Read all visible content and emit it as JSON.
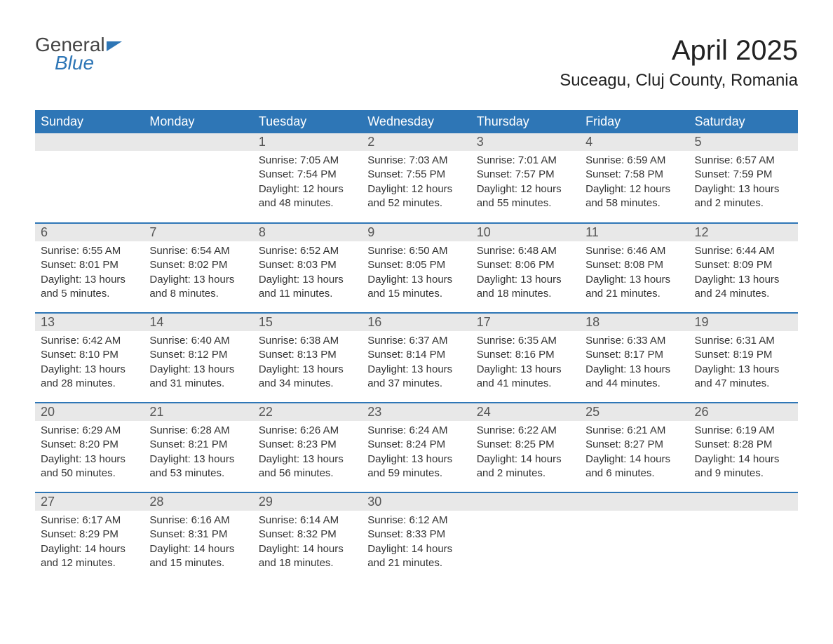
{
  "brand": {
    "word1": "General",
    "word2": "Blue"
  },
  "title": {
    "month": "April 2025",
    "location": "Suceagu, Cluj County, Romania"
  },
  "colors": {
    "header_bg": "#2e76b6",
    "header_text": "#ffffff",
    "day_num_bg": "#e8e8e8",
    "row_border": "#2e76b6",
    "text": "#333333",
    "brand_blue": "#2e76b6",
    "brand_gray": "#444444",
    "background": "#ffffff"
  },
  "layout": {
    "columns": 7,
    "rows": 5,
    "week_start": "Sunday"
  },
  "weekdays": [
    "Sunday",
    "Monday",
    "Tuesday",
    "Wednesday",
    "Thursday",
    "Friday",
    "Saturday"
  ],
  "weeks": [
    [
      null,
      null,
      {
        "day": "1",
        "sunrise": "Sunrise: 7:05 AM",
        "sunset": "Sunset: 7:54 PM",
        "daylight1": "Daylight: 12 hours",
        "daylight2": "and 48 minutes."
      },
      {
        "day": "2",
        "sunrise": "Sunrise: 7:03 AM",
        "sunset": "Sunset: 7:55 PM",
        "daylight1": "Daylight: 12 hours",
        "daylight2": "and 52 minutes."
      },
      {
        "day": "3",
        "sunrise": "Sunrise: 7:01 AM",
        "sunset": "Sunset: 7:57 PM",
        "daylight1": "Daylight: 12 hours",
        "daylight2": "and 55 minutes."
      },
      {
        "day": "4",
        "sunrise": "Sunrise: 6:59 AM",
        "sunset": "Sunset: 7:58 PM",
        "daylight1": "Daylight: 12 hours",
        "daylight2": "and 58 minutes."
      },
      {
        "day": "5",
        "sunrise": "Sunrise: 6:57 AM",
        "sunset": "Sunset: 7:59 PM",
        "daylight1": "Daylight: 13 hours",
        "daylight2": "and 2 minutes."
      }
    ],
    [
      {
        "day": "6",
        "sunrise": "Sunrise: 6:55 AM",
        "sunset": "Sunset: 8:01 PM",
        "daylight1": "Daylight: 13 hours",
        "daylight2": "and 5 minutes."
      },
      {
        "day": "7",
        "sunrise": "Sunrise: 6:54 AM",
        "sunset": "Sunset: 8:02 PM",
        "daylight1": "Daylight: 13 hours",
        "daylight2": "and 8 minutes."
      },
      {
        "day": "8",
        "sunrise": "Sunrise: 6:52 AM",
        "sunset": "Sunset: 8:03 PM",
        "daylight1": "Daylight: 13 hours",
        "daylight2": "and 11 minutes."
      },
      {
        "day": "9",
        "sunrise": "Sunrise: 6:50 AM",
        "sunset": "Sunset: 8:05 PM",
        "daylight1": "Daylight: 13 hours",
        "daylight2": "and 15 minutes."
      },
      {
        "day": "10",
        "sunrise": "Sunrise: 6:48 AM",
        "sunset": "Sunset: 8:06 PM",
        "daylight1": "Daylight: 13 hours",
        "daylight2": "and 18 minutes."
      },
      {
        "day": "11",
        "sunrise": "Sunrise: 6:46 AM",
        "sunset": "Sunset: 8:08 PM",
        "daylight1": "Daylight: 13 hours",
        "daylight2": "and 21 minutes."
      },
      {
        "day": "12",
        "sunrise": "Sunrise: 6:44 AM",
        "sunset": "Sunset: 8:09 PM",
        "daylight1": "Daylight: 13 hours",
        "daylight2": "and 24 minutes."
      }
    ],
    [
      {
        "day": "13",
        "sunrise": "Sunrise: 6:42 AM",
        "sunset": "Sunset: 8:10 PM",
        "daylight1": "Daylight: 13 hours",
        "daylight2": "and 28 minutes."
      },
      {
        "day": "14",
        "sunrise": "Sunrise: 6:40 AM",
        "sunset": "Sunset: 8:12 PM",
        "daylight1": "Daylight: 13 hours",
        "daylight2": "and 31 minutes."
      },
      {
        "day": "15",
        "sunrise": "Sunrise: 6:38 AM",
        "sunset": "Sunset: 8:13 PM",
        "daylight1": "Daylight: 13 hours",
        "daylight2": "and 34 minutes."
      },
      {
        "day": "16",
        "sunrise": "Sunrise: 6:37 AM",
        "sunset": "Sunset: 8:14 PM",
        "daylight1": "Daylight: 13 hours",
        "daylight2": "and 37 minutes."
      },
      {
        "day": "17",
        "sunrise": "Sunrise: 6:35 AM",
        "sunset": "Sunset: 8:16 PM",
        "daylight1": "Daylight: 13 hours",
        "daylight2": "and 41 minutes."
      },
      {
        "day": "18",
        "sunrise": "Sunrise: 6:33 AM",
        "sunset": "Sunset: 8:17 PM",
        "daylight1": "Daylight: 13 hours",
        "daylight2": "and 44 minutes."
      },
      {
        "day": "19",
        "sunrise": "Sunrise: 6:31 AM",
        "sunset": "Sunset: 8:19 PM",
        "daylight1": "Daylight: 13 hours",
        "daylight2": "and 47 minutes."
      }
    ],
    [
      {
        "day": "20",
        "sunrise": "Sunrise: 6:29 AM",
        "sunset": "Sunset: 8:20 PM",
        "daylight1": "Daylight: 13 hours",
        "daylight2": "and 50 minutes."
      },
      {
        "day": "21",
        "sunrise": "Sunrise: 6:28 AM",
        "sunset": "Sunset: 8:21 PM",
        "daylight1": "Daylight: 13 hours",
        "daylight2": "and 53 minutes."
      },
      {
        "day": "22",
        "sunrise": "Sunrise: 6:26 AM",
        "sunset": "Sunset: 8:23 PM",
        "daylight1": "Daylight: 13 hours",
        "daylight2": "and 56 minutes."
      },
      {
        "day": "23",
        "sunrise": "Sunrise: 6:24 AM",
        "sunset": "Sunset: 8:24 PM",
        "daylight1": "Daylight: 13 hours",
        "daylight2": "and 59 minutes."
      },
      {
        "day": "24",
        "sunrise": "Sunrise: 6:22 AM",
        "sunset": "Sunset: 8:25 PM",
        "daylight1": "Daylight: 14 hours",
        "daylight2": "and 2 minutes."
      },
      {
        "day": "25",
        "sunrise": "Sunrise: 6:21 AM",
        "sunset": "Sunset: 8:27 PM",
        "daylight1": "Daylight: 14 hours",
        "daylight2": "and 6 minutes."
      },
      {
        "day": "26",
        "sunrise": "Sunrise: 6:19 AM",
        "sunset": "Sunset: 8:28 PM",
        "daylight1": "Daylight: 14 hours",
        "daylight2": "and 9 minutes."
      }
    ],
    [
      {
        "day": "27",
        "sunrise": "Sunrise: 6:17 AM",
        "sunset": "Sunset: 8:29 PM",
        "daylight1": "Daylight: 14 hours",
        "daylight2": "and 12 minutes."
      },
      {
        "day": "28",
        "sunrise": "Sunrise: 6:16 AM",
        "sunset": "Sunset: 8:31 PM",
        "daylight1": "Daylight: 14 hours",
        "daylight2": "and 15 minutes."
      },
      {
        "day": "29",
        "sunrise": "Sunrise: 6:14 AM",
        "sunset": "Sunset: 8:32 PM",
        "daylight1": "Daylight: 14 hours",
        "daylight2": "and 18 minutes."
      },
      {
        "day": "30",
        "sunrise": "Sunrise: 6:12 AM",
        "sunset": "Sunset: 8:33 PM",
        "daylight1": "Daylight: 14 hours",
        "daylight2": "and 21 minutes."
      },
      null,
      null,
      null
    ]
  ]
}
